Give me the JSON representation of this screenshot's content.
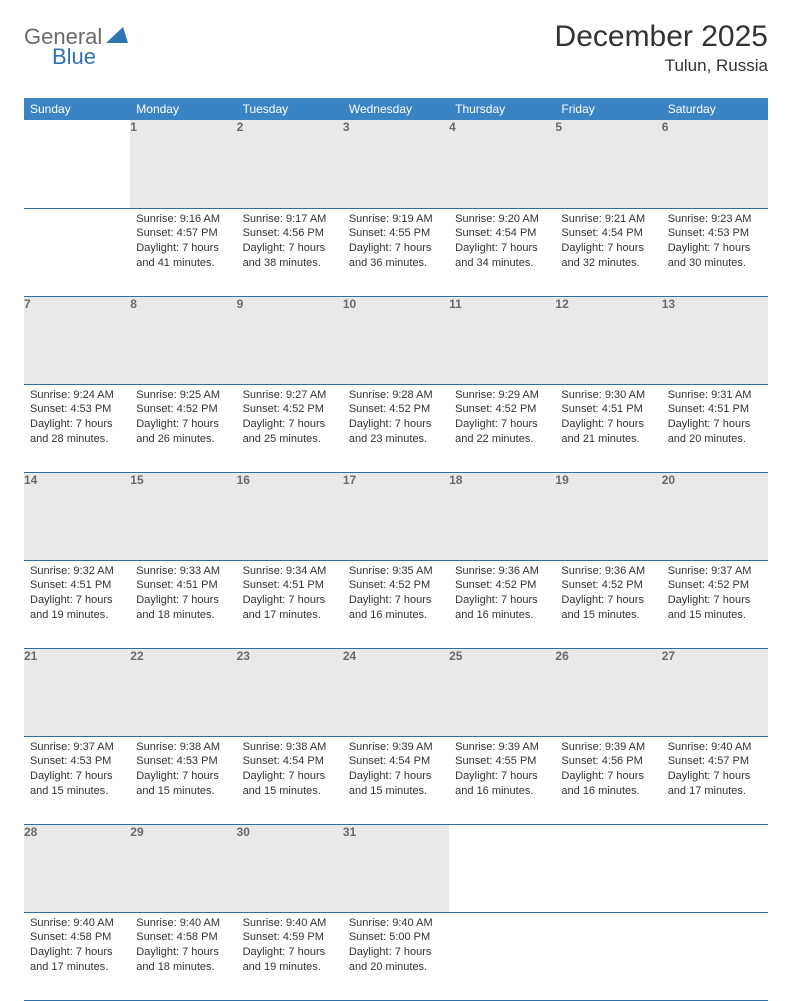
{
  "brand": {
    "part1": "General",
    "part2": "Blue"
  },
  "title": "December 2025",
  "location": "Tulun, Russia",
  "colors": {
    "header_bg": "#3a84c4",
    "header_text": "#ffffff",
    "daynum_bg": "#e9e9e9",
    "daynum_text": "#6a6a6a",
    "rule": "#2f6fa8",
    "brand_gray": "#6b6b6b",
    "brand_blue": "#2f73b5"
  },
  "weekdays": [
    "Sunday",
    "Monday",
    "Tuesday",
    "Wednesday",
    "Thursday",
    "Friday",
    "Saturday"
  ],
  "weeks": [
    [
      null,
      {
        "n": "1",
        "sunrise": "9:16 AM",
        "sunset": "4:57 PM",
        "daylight": "7 hours and 41 minutes."
      },
      {
        "n": "2",
        "sunrise": "9:17 AM",
        "sunset": "4:56 PM",
        "daylight": "7 hours and 38 minutes."
      },
      {
        "n": "3",
        "sunrise": "9:19 AM",
        "sunset": "4:55 PM",
        "daylight": "7 hours and 36 minutes."
      },
      {
        "n": "4",
        "sunrise": "9:20 AM",
        "sunset": "4:54 PM",
        "daylight": "7 hours and 34 minutes."
      },
      {
        "n": "5",
        "sunrise": "9:21 AM",
        "sunset": "4:54 PM",
        "daylight": "7 hours and 32 minutes."
      },
      {
        "n": "6",
        "sunrise": "9:23 AM",
        "sunset": "4:53 PM",
        "daylight": "7 hours and 30 minutes."
      }
    ],
    [
      {
        "n": "7",
        "sunrise": "9:24 AM",
        "sunset": "4:53 PM",
        "daylight": "7 hours and 28 minutes."
      },
      {
        "n": "8",
        "sunrise": "9:25 AM",
        "sunset": "4:52 PM",
        "daylight": "7 hours and 26 minutes."
      },
      {
        "n": "9",
        "sunrise": "9:27 AM",
        "sunset": "4:52 PM",
        "daylight": "7 hours and 25 minutes."
      },
      {
        "n": "10",
        "sunrise": "9:28 AM",
        "sunset": "4:52 PM",
        "daylight": "7 hours and 23 minutes."
      },
      {
        "n": "11",
        "sunrise": "9:29 AM",
        "sunset": "4:52 PM",
        "daylight": "7 hours and 22 minutes."
      },
      {
        "n": "12",
        "sunrise": "9:30 AM",
        "sunset": "4:51 PM",
        "daylight": "7 hours and 21 minutes."
      },
      {
        "n": "13",
        "sunrise": "9:31 AM",
        "sunset": "4:51 PM",
        "daylight": "7 hours and 20 minutes."
      }
    ],
    [
      {
        "n": "14",
        "sunrise": "9:32 AM",
        "sunset": "4:51 PM",
        "daylight": "7 hours and 19 minutes."
      },
      {
        "n": "15",
        "sunrise": "9:33 AM",
        "sunset": "4:51 PM",
        "daylight": "7 hours and 18 minutes."
      },
      {
        "n": "16",
        "sunrise": "9:34 AM",
        "sunset": "4:51 PM",
        "daylight": "7 hours and 17 minutes."
      },
      {
        "n": "17",
        "sunrise": "9:35 AM",
        "sunset": "4:52 PM",
        "daylight": "7 hours and 16 minutes."
      },
      {
        "n": "18",
        "sunrise": "9:36 AM",
        "sunset": "4:52 PM",
        "daylight": "7 hours and 16 minutes."
      },
      {
        "n": "19",
        "sunrise": "9:36 AM",
        "sunset": "4:52 PM",
        "daylight": "7 hours and 15 minutes."
      },
      {
        "n": "20",
        "sunrise": "9:37 AM",
        "sunset": "4:52 PM",
        "daylight": "7 hours and 15 minutes."
      }
    ],
    [
      {
        "n": "21",
        "sunrise": "9:37 AM",
        "sunset": "4:53 PM",
        "daylight": "7 hours and 15 minutes."
      },
      {
        "n": "22",
        "sunrise": "9:38 AM",
        "sunset": "4:53 PM",
        "daylight": "7 hours and 15 minutes."
      },
      {
        "n": "23",
        "sunrise": "9:38 AM",
        "sunset": "4:54 PM",
        "daylight": "7 hours and 15 minutes."
      },
      {
        "n": "24",
        "sunrise": "9:39 AM",
        "sunset": "4:54 PM",
        "daylight": "7 hours and 15 minutes."
      },
      {
        "n": "25",
        "sunrise": "9:39 AM",
        "sunset": "4:55 PM",
        "daylight": "7 hours and 16 minutes."
      },
      {
        "n": "26",
        "sunrise": "9:39 AM",
        "sunset": "4:56 PM",
        "daylight": "7 hours and 16 minutes."
      },
      {
        "n": "27",
        "sunrise": "9:40 AM",
        "sunset": "4:57 PM",
        "daylight": "7 hours and 17 minutes."
      }
    ],
    [
      {
        "n": "28",
        "sunrise": "9:40 AM",
        "sunset": "4:58 PM",
        "daylight": "7 hours and 17 minutes."
      },
      {
        "n": "29",
        "sunrise": "9:40 AM",
        "sunset": "4:58 PM",
        "daylight": "7 hours and 18 minutes."
      },
      {
        "n": "30",
        "sunrise": "9:40 AM",
        "sunset": "4:59 PM",
        "daylight": "7 hours and 19 minutes."
      },
      {
        "n": "31",
        "sunrise": "9:40 AM",
        "sunset": "5:00 PM",
        "daylight": "7 hours and 20 minutes."
      },
      null,
      null,
      null
    ]
  ],
  "labels": {
    "sunrise": "Sunrise:",
    "sunset": "Sunset:",
    "daylight": "Daylight:"
  }
}
